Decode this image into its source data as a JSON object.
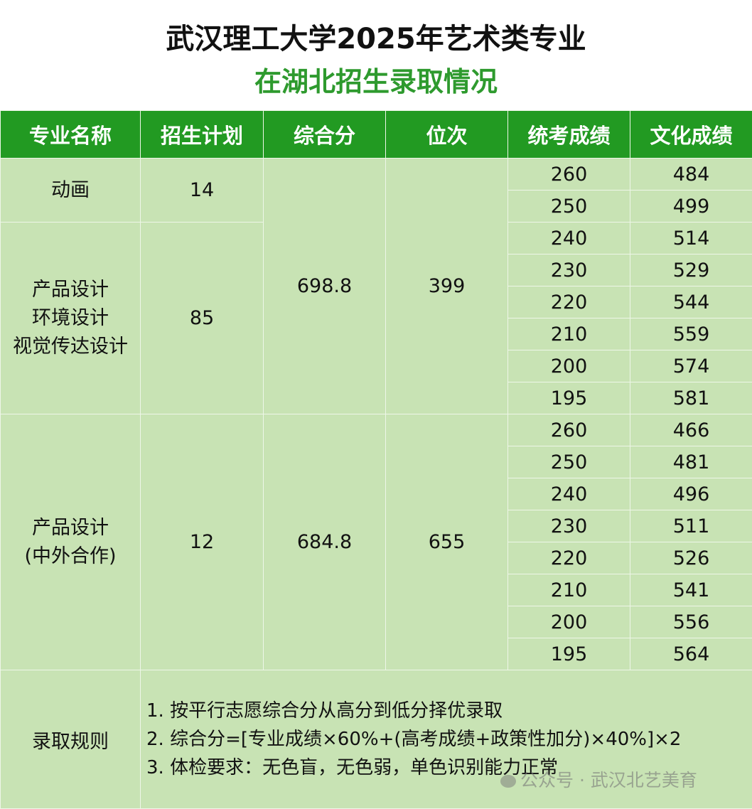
{
  "title": "武汉理工大学2025年艺术类专业",
  "subtitle": "在湖北招生录取情况",
  "colors": {
    "header_bg": "#229a22",
    "cell_bg": "#c8e3b4",
    "subtitle": "#2e9a2e"
  },
  "headers": [
    "专业名称",
    "招生计划",
    "综合分",
    "位次",
    "统考成绩",
    "文化成绩"
  ],
  "groups": [
    {
      "majors": [
        "动画"
      ],
      "plan": "14",
      "scores": [
        [
          "260",
          "484"
        ],
        [
          "250",
          "499"
        ]
      ]
    },
    {
      "majors": [
        "产品设计",
        "环境设计",
        "视觉传达设计"
      ],
      "plan": "85",
      "scores": [
        [
          "240",
          "514"
        ],
        [
          "230",
          "529"
        ],
        [
          "220",
          "544"
        ],
        [
          "210",
          "559"
        ],
        [
          "200",
          "574"
        ],
        [
          "195",
          "581"
        ]
      ]
    },
    {
      "majors": [
        "产品设计",
        "(中外合作)"
      ],
      "plan": "12",
      "composite": "684.8",
      "rank": "655",
      "scores": [
        [
          "260",
          "466"
        ],
        [
          "250",
          "481"
        ],
        [
          "240",
          "496"
        ],
        [
          "230",
          "511"
        ],
        [
          "220",
          "526"
        ],
        [
          "210",
          "541"
        ],
        [
          "200",
          "556"
        ],
        [
          "195",
          "564"
        ]
      ]
    }
  ],
  "shared_first_two": {
    "composite": "698.8",
    "rank": "399"
  },
  "rules": {
    "label": "录取规则",
    "items": [
      "1. 按平行志愿综合分从高分到低分择优录取",
      "2. 综合分=[专业成绩×60%+(高考成绩+政策性加分)×40%]×2",
      "3. 体检要求：无色盲，无色弱，单色识别能力正常"
    ]
  },
  "watermark": "公众号 · 武汉北艺美育"
}
